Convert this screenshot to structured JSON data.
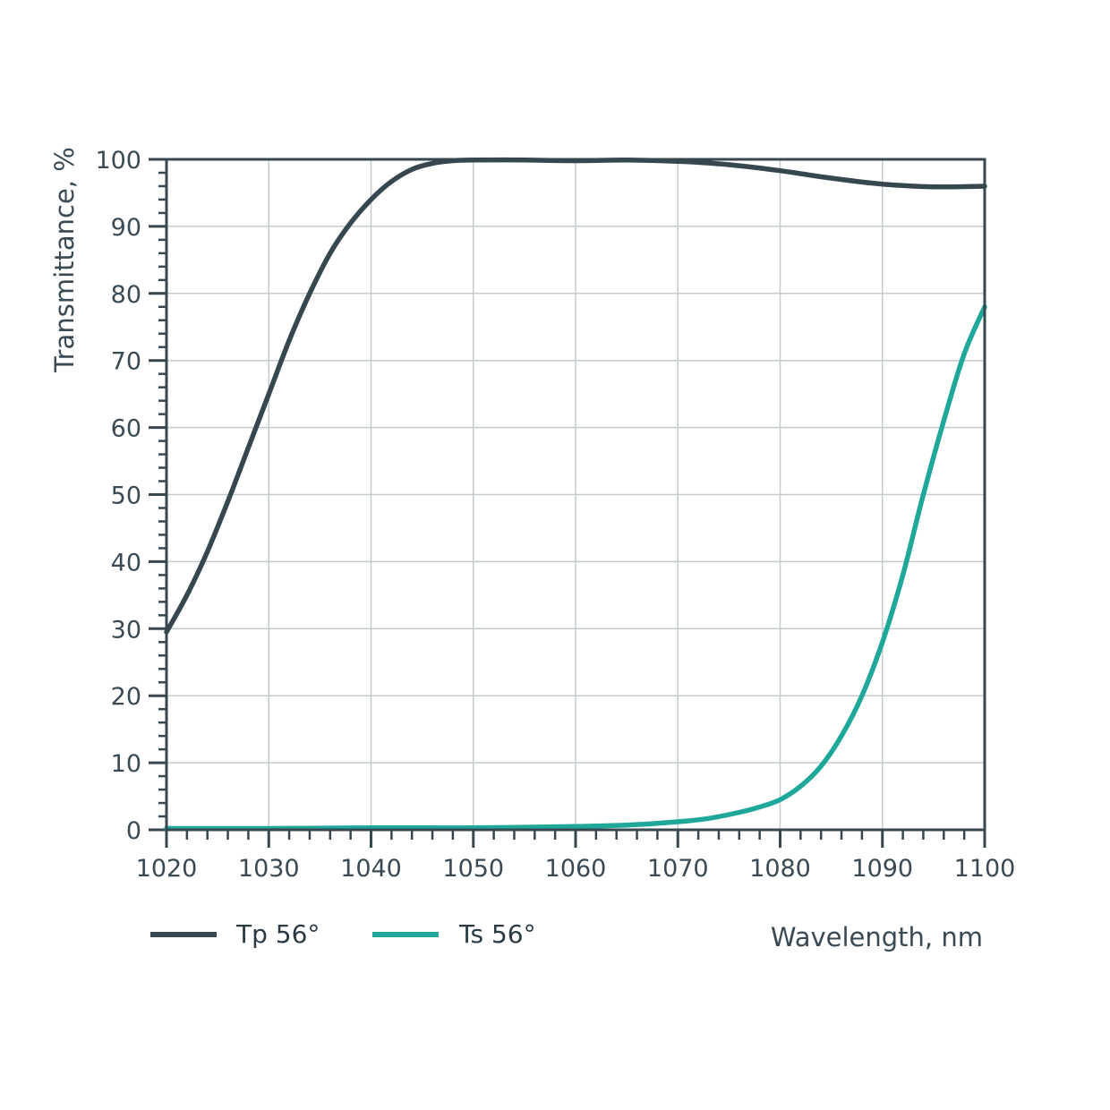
{
  "chart_data": {
    "type": "line",
    "xlabel": "Wavelength, nm",
    "ylabel": "Transmittance, %",
    "xlim": [
      1020,
      1100
    ],
    "ylim": [
      0,
      100
    ],
    "x_ticks": [
      "1020",
      "1030",
      "1040",
      "1050",
      "1060",
      "1070",
      "1080",
      "1090",
      "1100"
    ],
    "y_ticks": [
      "0",
      "10",
      "20",
      "30",
      "40",
      "50",
      "60",
      "70",
      "80",
      "90",
      "100"
    ],
    "grid": true,
    "legend_position": "bottom-left",
    "series": [
      {
        "name": "Tp 56°",
        "color": "#37474f",
        "x": [
          1020,
          1022,
          1024,
          1026,
          1028,
          1030,
          1032,
          1034,
          1036,
          1038,
          1040,
          1042,
          1044,
          1046,
          1048,
          1050,
          1055,
          1060,
          1065,
          1070,
          1075,
          1080,
          1085,
          1090,
          1095,
          1100
        ],
        "y": [
          29.5,
          35,
          41.5,
          49,
          57,
          65,
          73,
          80,
          86,
          90.5,
          94,
          96.7,
          98.5,
          99.4,
          99.8,
          99.9,
          99.9,
          99.8,
          99.9,
          99.7,
          99.2,
          98.3,
          97.2,
          96.3,
          95.9,
          96
        ]
      },
      {
        "name": "Ts 56°",
        "color": "#1fa89a",
        "x": [
          1020,
          1030,
          1040,
          1050,
          1060,
          1065,
          1070,
          1073,
          1076,
          1078,
          1080,
          1082,
          1084,
          1086,
          1088,
          1090,
          1092,
          1094,
          1096,
          1098,
          1100
        ],
        "y": [
          0.2,
          0.2,
          0.3,
          0.3,
          0.5,
          0.7,
          1.2,
          1.7,
          2.6,
          3.4,
          4.5,
          6.5,
          9.5,
          14,
          20,
          28,
          38,
          50,
          61,
          71,
          78
        ]
      }
    ]
  }
}
